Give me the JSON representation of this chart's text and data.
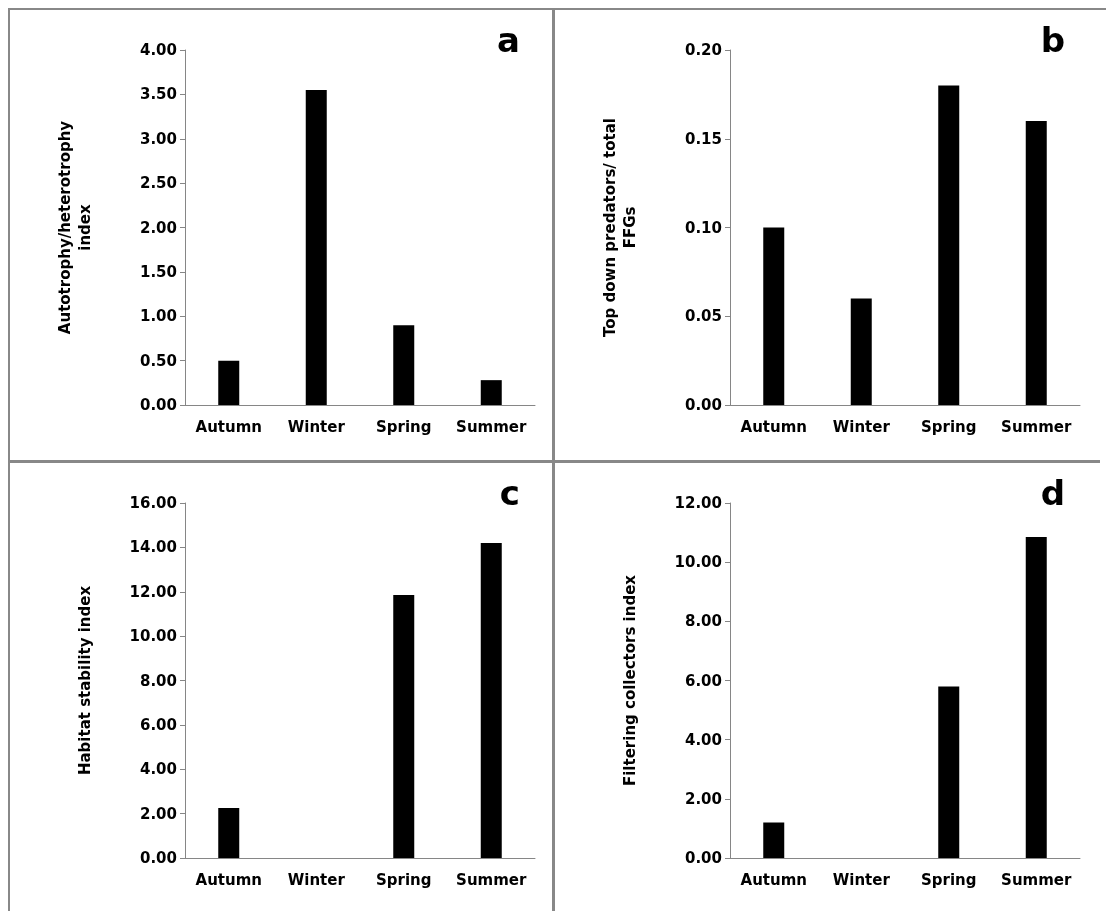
{
  "chart_data": [
    {
      "type": "bar",
      "title": "a",
      "categories": [
        "Autumn",
        "Winter",
        "Spring",
        "Summer"
      ],
      "values": [
        0.5,
        3.55,
        0.9,
        0.28
      ],
      "color": "#000000",
      "ylabel": "Autotrophy/heterotrophy\nindex",
      "ylim": [
        0,
        4
      ],
      "yticks": [
        {
          "value": 0,
          "label": "0.00"
        },
        {
          "value": 0.5,
          "label": "0.50"
        },
        {
          "value": 1,
          "label": "1.00"
        },
        {
          "value": 1.5,
          "label": "1.50"
        },
        {
          "value": 2,
          "label": "2.00"
        },
        {
          "value": 2.5,
          "label": "2.50"
        },
        {
          "value": 3,
          "label": "3.00"
        },
        {
          "value": 3.5,
          "label": "3.50"
        },
        {
          "value": 4,
          "label": "4.00"
        }
      ],
      "grid": false
    },
    {
      "type": "bar",
      "title": "b",
      "categories": [
        "Autumn",
        "Winter",
        "Spring",
        "Summer"
      ],
      "values": [
        0.1,
        0.06,
        0.18,
        0.16
      ],
      "color": "#000000",
      "ylabel": "Top down predators/ total\nFFGs",
      "ylim": [
        0,
        0.2
      ],
      "yticks": [
        {
          "value": 0,
          "label": "0.00"
        },
        {
          "value": 0.05,
          "label": "0.05"
        },
        {
          "value": 0.1,
          "label": "0.10"
        },
        {
          "value": 0.15,
          "label": "0.15"
        },
        {
          "value": 0.2,
          "label": "0.20"
        }
      ],
      "grid": false
    },
    {
      "type": "bar",
      "title": "c",
      "categories": [
        "Autumn",
        "Winter",
        "Spring",
        "Summer"
      ],
      "values": [
        2.25,
        0,
        11.85,
        14.2
      ],
      "color": "#000000",
      "ylabel": "Habitat stability index",
      "ylim": [
        0,
        16
      ],
      "yticks": [
        {
          "value": 0,
          "label": "0.00"
        },
        {
          "value": 2,
          "label": "2.00"
        },
        {
          "value": 4,
          "label": "4.00"
        },
        {
          "value": 6,
          "label": "6.00"
        },
        {
          "value": 8,
          "label": "8.00"
        },
        {
          "value": 10,
          "label": "10.00"
        },
        {
          "value": 12,
          "label": "12.00"
        },
        {
          "value": 14,
          "label": "14.00"
        },
        {
          "value": 16,
          "label": "16.00"
        }
      ],
      "grid": false
    },
    {
      "type": "bar",
      "title": "d",
      "categories": [
        "Autumn",
        "Winter",
        "Spring",
        "Summer"
      ],
      "values": [
        1.2,
        0,
        5.8,
        10.85
      ],
      "color": "#000000",
      "ylabel": "Filtering collectors index",
      "ylim": [
        0,
        12
      ],
      "yticks": [
        {
          "value": 0,
          "label": "0.00"
        },
        {
          "value": 2,
          "label": "2.00"
        },
        {
          "value": 4,
          "label": "4.00"
        },
        {
          "value": 6,
          "label": "6.00"
        },
        {
          "value": 8,
          "label": "8.00"
        },
        {
          "value": 10,
          "label": "10.00"
        },
        {
          "value": 12,
          "label": "12.00"
        }
      ],
      "grid": false
    }
  ]
}
